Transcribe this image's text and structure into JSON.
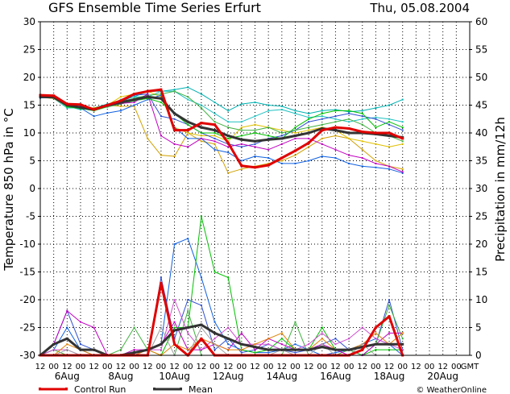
{
  "chart_data": {
    "type": "line",
    "title": "GFS Ensemble Time Series Erfurt",
    "date": "Thu, 05.08.2004",
    "ylabel": "Temperature 850 hPa in °C",
    "y2label": "Precipitation in mm/12h",
    "ylim": [
      -30,
      30
    ],
    "y2lim": [
      0,
      60
    ],
    "yticks": [
      30,
      25,
      20,
      15,
      10,
      5,
      0,
      -5,
      -10,
      -15,
      -20,
      -25,
      -30
    ],
    "y2ticks": [
      60,
      55,
      50,
      45,
      40,
      35,
      30,
      25,
      20,
      15,
      10,
      5,
      0
    ],
    "x_tick_labels": [
      "12",
      "00",
      "12",
      "00",
      "12",
      "00",
      "12",
      "00",
      "12",
      "00",
      "12",
      "00",
      "12",
      "00",
      "12",
      "00",
      "12",
      "00",
      "12",
      "00",
      "12",
      "00",
      "12",
      "00",
      "12",
      "00",
      "12",
      "00",
      "12",
      "00",
      "12",
      "00",
      "GMT"
    ],
    "day_labels": [
      "6Aug",
      "8Aug",
      "10Aug",
      "12Aug",
      "14Aug",
      "16Aug",
      "18Aug",
      "20Aug"
    ],
    "grid": true,
    "legend": [
      "Control Run",
      "Mean"
    ],
    "legend_position": "bottom-left",
    "credit": "© WeatherOnline",
    "colors": {
      "control": "#e00000",
      "mean": "#333333",
      "members": [
        "#00b0b0",
        "#20c0c0",
        "#d0a000",
        "#e0c000",
        "#1060e0",
        "#3050d0",
        "#00c000",
        "#40b040",
        "#c000c0",
        "#d050d0",
        "#e08000",
        "#a0a0a0"
      ]
    },
    "x_step_hours": 12,
    "temperature_series": [
      {
        "name": "Control Run",
        "role": "control",
        "values": [
          16.8,
          16.7,
          15.2,
          15.1,
          14.2,
          15.0,
          15.8,
          17.0,
          17.5,
          17.8,
          10.5,
          10.5,
          11.8,
          11.5,
          8.2,
          4.1,
          3.8,
          4.2,
          5.5,
          6.8,
          8.2,
          10.5,
          11.0,
          10.8,
          10.2,
          10.0,
          10.0,
          9.0
        ]
      },
      {
        "name": "Mean",
        "role": "mean",
        "values": [
          16.5,
          16.4,
          15.0,
          14.6,
          14.2,
          15.0,
          15.5,
          16.0,
          16.5,
          16.2,
          13.5,
          12.0,
          11.0,
          10.5,
          9.5,
          8.8,
          8.5,
          8.8,
          9.0,
          9.5,
          10.0,
          10.8,
          10.5,
          10.0,
          10.0,
          9.8,
          9.5,
          9.2
        ]
      },
      {
        "values": [
          16.5,
          16.3,
          14.8,
          14.2,
          14.5,
          15.2,
          15.8,
          16.5,
          17.5,
          17.5,
          17.8,
          18.2,
          17.0,
          15.5,
          14.0,
          15.2,
          15.5,
          15.0,
          14.8,
          14.0,
          13.5,
          14.0,
          14.2,
          13.8,
          14.0,
          14.5,
          15.0,
          16.0
        ]
      },
      {
        "values": [
          16.5,
          16.2,
          14.5,
          14.5,
          14.0,
          14.8,
          16.0,
          16.5,
          16.5,
          17.5,
          17.5,
          16.0,
          15.0,
          13.5,
          12.0,
          12.0,
          13.0,
          14.0,
          14.2,
          13.5,
          12.8,
          13.0,
          12.5,
          12.0,
          12.5,
          12.8,
          12.5,
          12.0
        ]
      },
      {
        "values": [
          16.6,
          16.5,
          14.8,
          14.5,
          14.5,
          15.0,
          14.8,
          14.8,
          9.0,
          6.0,
          5.8,
          10.0,
          8.5,
          8.0,
          2.8,
          3.5,
          4.0,
          4.5,
          5.0,
          6.0,
          7.5,
          9.0,
          9.5,
          9.0,
          7.0,
          5.0,
          4.0,
          3.5
        ]
      },
      {
        "values": [
          16.4,
          16.2,
          14.8,
          14.6,
          14.2,
          15.0,
          16.5,
          17.0,
          17.5,
          16.5,
          11.0,
          10.0,
          9.5,
          9.5,
          8.5,
          11.0,
          11.5,
          11.0,
          10.5,
          10.0,
          10.5,
          11.0,
          10.5,
          9.0,
          8.5,
          8.0,
          7.5,
          8.0
        ]
      },
      {
        "values": [
          16.3,
          16.4,
          15.0,
          14.5,
          13.0,
          13.6,
          14.0,
          15.0,
          16.0,
          16.8,
          11.0,
          9.0,
          9.0,
          7.0,
          6.5,
          5.0,
          5.8,
          5.5,
          4.5,
          4.5,
          5.0,
          5.8,
          5.5,
          4.5,
          4.0,
          3.8,
          3.5,
          2.8
        ]
      },
      {
        "values": [
          16.7,
          16.6,
          15.0,
          14.8,
          14.3,
          14.9,
          15.5,
          16.8,
          17.0,
          13.0,
          12.5,
          11.5,
          10.0,
          9.0,
          8.0,
          7.5,
          8.0,
          9.0,
          9.5,
          10.5,
          12.0,
          12.5,
          13.0,
          13.5,
          13.0,
          12.5,
          11.5,
          10.5
        ]
      },
      {
        "values": [
          16.6,
          16.5,
          14.7,
          14.4,
          14.0,
          14.7,
          15.2,
          15.8,
          16.2,
          15.5,
          13.5,
          11.5,
          10.0,
          10.0,
          9.0,
          9.5,
          10.0,
          9.5,
          9.0,
          11.0,
          12.5,
          13.5,
          14.0,
          14.0,
          13.5,
          11.0,
          12.0,
          11.0
        ]
      },
      {
        "values": [
          16.5,
          16.6,
          15.1,
          14.6,
          14.3,
          15.0,
          15.7,
          16.2,
          16.8,
          17.0,
          17.5,
          16.5,
          14.5,
          12.0,
          11.0,
          10.5,
          10.5,
          11.0,
          10.0,
          10.5,
          11.0,
          11.5,
          12.0,
          12.5,
          11.5,
          10.0,
          9.5,
          8.5
        ]
      },
      {
        "values": [
          16.6,
          16.4,
          15.0,
          14.7,
          14.2,
          14.8,
          15.3,
          15.5,
          17.0,
          9.5,
          8.0,
          7.5,
          9.0,
          8.5,
          7.5,
          8.0,
          7.5,
          7.0,
          8.0,
          9.0,
          9.0,
          8.0,
          7.0,
          6.0,
          5.5,
          4.5,
          4.0,
          3.0
        ]
      }
    ],
    "precipitation_series": [
      {
        "name": "Control Run",
        "role": "control",
        "values": [
          0,
          0,
          0,
          0,
          0,
          0,
          0,
          0,
          0,
          13,
          2,
          0,
          3,
          0,
          0,
          0,
          0,
          0,
          0,
          0,
          0,
          0,
          0,
          0,
          1,
          5,
          7,
          0
        ]
      },
      {
        "name": "Mean",
        "role": "mean",
        "values": [
          0,
          2,
          3,
          1,
          1,
          0,
          0,
          0.5,
          1,
          2,
          4.5,
          5,
          5.5,
          4,
          3,
          2,
          1.5,
          1,
          1,
          1,
          1,
          1.5,
          1,
          1,
          1.5,
          2,
          2,
          2
        ]
      },
      {
        "values": [
          0,
          1,
          5,
          1,
          0,
          0,
          0,
          0,
          1,
          2,
          20,
          21,
          14,
          6,
          2,
          1,
          0.5,
          0.5,
          1,
          2,
          1,
          0,
          0.5,
          1,
          2,
          3,
          2,
          0
        ]
      },
      {
        "values": [
          0,
          2,
          8,
          2,
          1,
          0,
          0,
          0,
          0,
          14,
          3,
          10,
          9,
          1,
          3,
          0.5,
          1,
          2,
          1,
          0.5,
          1,
          2,
          3,
          1,
          0,
          2,
          10,
          1
        ]
      },
      {
        "values": [
          0,
          0,
          0,
          0,
          0,
          0,
          0,
          0,
          0,
          0,
          5,
          5,
          25,
          15,
          14,
          1,
          0.5,
          1,
          3,
          1,
          1,
          5,
          1,
          1,
          0,
          1,
          1,
          1
        ]
      },
      {
        "values": [
          0,
          1,
          0,
          0,
          0,
          0,
          1,
          5,
          1,
          0,
          0,
          8,
          0,
          0,
          0,
          0,
          0,
          0,
          0,
          6,
          0,
          0,
          0,
          1,
          0,
          2,
          9,
          3
        ]
      },
      {
        "values": [
          0,
          2,
          8,
          6,
          5,
          0,
          0,
          1,
          1,
          2,
          6,
          1,
          1,
          2,
          1,
          4,
          1,
          3,
          2,
          1,
          1,
          2,
          1,
          0,
          0,
          2,
          4,
          4
        ]
      },
      {
        "values": [
          0,
          1,
          1,
          0,
          0,
          0,
          0,
          0,
          1,
          1,
          10,
          4,
          1,
          3,
          5,
          2,
          2,
          2,
          1,
          1,
          2,
          4,
          2,
          3,
          5,
          3,
          2,
          1
        ]
      },
      {
        "values": [
          0,
          0,
          2,
          1,
          0,
          0,
          0,
          0,
          1,
          0,
          2,
          1,
          3,
          2,
          1,
          1,
          2,
          3,
          4,
          1,
          1,
          3,
          1,
          1,
          2,
          4,
          2,
          4
        ]
      },
      {
        "values": [
          0,
          0,
          1,
          0,
          0,
          0,
          0,
          0,
          0,
          5,
          0,
          0,
          5,
          2,
          0,
          0,
          0,
          0,
          1,
          0,
          0,
          2,
          0,
          0,
          2,
          0,
          0,
          0
        ]
      }
    ]
  }
}
